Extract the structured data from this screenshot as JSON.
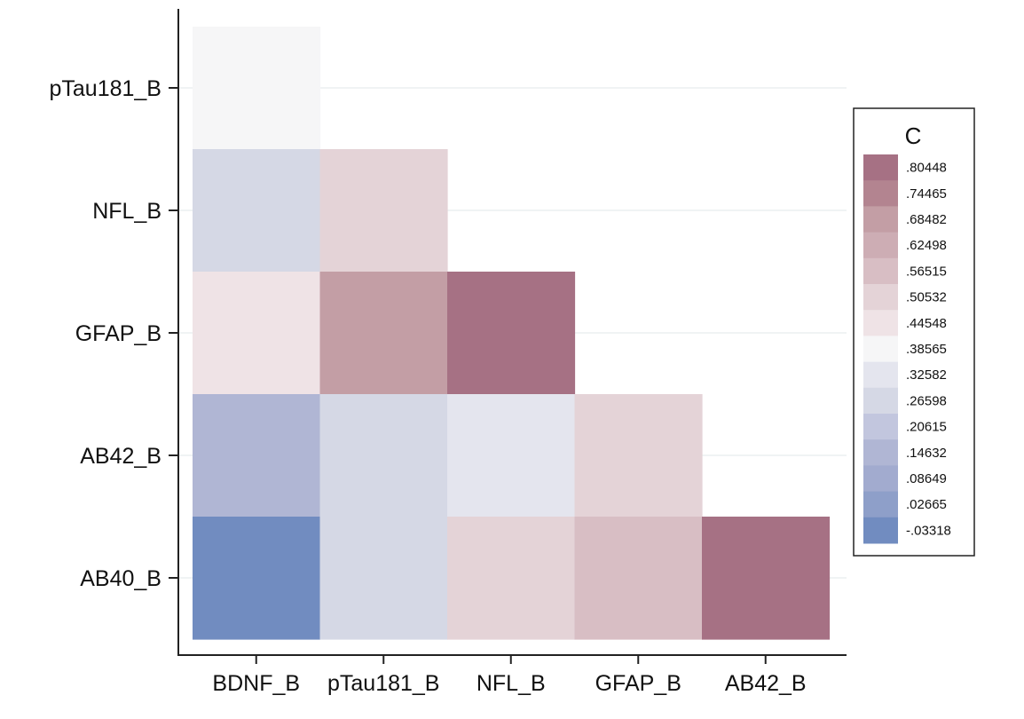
{
  "chart_data": {
    "type": "heatmap",
    "x_categories": [
      "BDNF_B",
      "pTau181_B",
      "NFL_B",
      "GFAP_B",
      "AB42_B"
    ],
    "y_categories": [
      "pTau181_B",
      "NFL_B",
      "GFAP_B",
      "AB42_B",
      "AB40_B"
    ],
    "cells": [
      {
        "x": "BDNF_B",
        "y": "pTau181_B",
        "value": 0.39,
        "color": "#f6f6f7"
      },
      {
        "x": "BDNF_B",
        "y": "NFL_B",
        "value": 0.28,
        "color": "#d5d8e5"
      },
      {
        "x": "pTau181_B",
        "y": "NFL_B",
        "value": 0.52,
        "color": "#e4d3d7"
      },
      {
        "x": "BDNF_B",
        "y": "GFAP_B",
        "value": 0.47,
        "color": "#efe3e6"
      },
      {
        "x": "pTau181_B",
        "y": "GFAP_B",
        "value": 0.69,
        "color": "#c39ea5"
      },
      {
        "x": "NFL_B",
        "y": "GFAP_B",
        "value": 0.81,
        "color": "#a67184"
      },
      {
        "x": "BDNF_B",
        "y": "AB42_B",
        "value": 0.17,
        "color": "#b0b6d4"
      },
      {
        "x": "pTau181_B",
        "y": "AB42_B",
        "value": 0.28,
        "color": "#d5d8e5"
      },
      {
        "x": "NFL_B",
        "y": "AB42_B",
        "value": 0.33,
        "color": "#e4e5ee"
      },
      {
        "x": "GFAP_B",
        "y": "AB42_B",
        "value": 0.53,
        "color": "#e4d3d7"
      },
      {
        "x": "BDNF_B",
        "y": "AB40_B",
        "value": -0.03,
        "color": "#718cc0"
      },
      {
        "x": "pTau181_B",
        "y": "AB40_B",
        "value": 0.28,
        "color": "#d5d8e5"
      },
      {
        "x": "NFL_B",
        "y": "AB40_B",
        "value": 0.52,
        "color": "#e4d3d7"
      },
      {
        "x": "GFAP_B",
        "y": "AB40_B",
        "value": 0.56,
        "color": "#d8bec4"
      },
      {
        "x": "AB42_B",
        "y": "AB40_B",
        "value": 0.81,
        "color": "#a67184"
      }
    ],
    "legend": {
      "title": "C",
      "placement": "right",
      "entries": [
        {
          "label": ".80448",
          "color": "#a67184"
        },
        {
          "label": ".74465",
          "color": "#b38490"
        },
        {
          "label": ".68482",
          "color": "#c39ea5"
        },
        {
          "label": ".62498",
          "color": "#cdadb4"
        },
        {
          "label": ".56515",
          "color": "#d8bec4"
        },
        {
          "label": ".50532",
          "color": "#e4d3d7"
        },
        {
          "label": ".44548",
          "color": "#efe3e6"
        },
        {
          "label": ".38565",
          "color": "#f6f6f7"
        },
        {
          "label": ".32582",
          "color": "#e4e5ee"
        },
        {
          "label": ".26598",
          "color": "#d5d8e5"
        },
        {
          "label": ".20615",
          "color": "#c2c6de"
        },
        {
          "label": ".14632",
          "color": "#b0b6d4"
        },
        {
          "label": ".08649",
          "color": "#a2abcf"
        },
        {
          "label": ".02665",
          "color": "#8e9fc9"
        },
        {
          "label": "-.03318",
          "color": "#718cc0"
        }
      ]
    },
    "grid": true,
    "gridline_color": "#e8ecee"
  }
}
